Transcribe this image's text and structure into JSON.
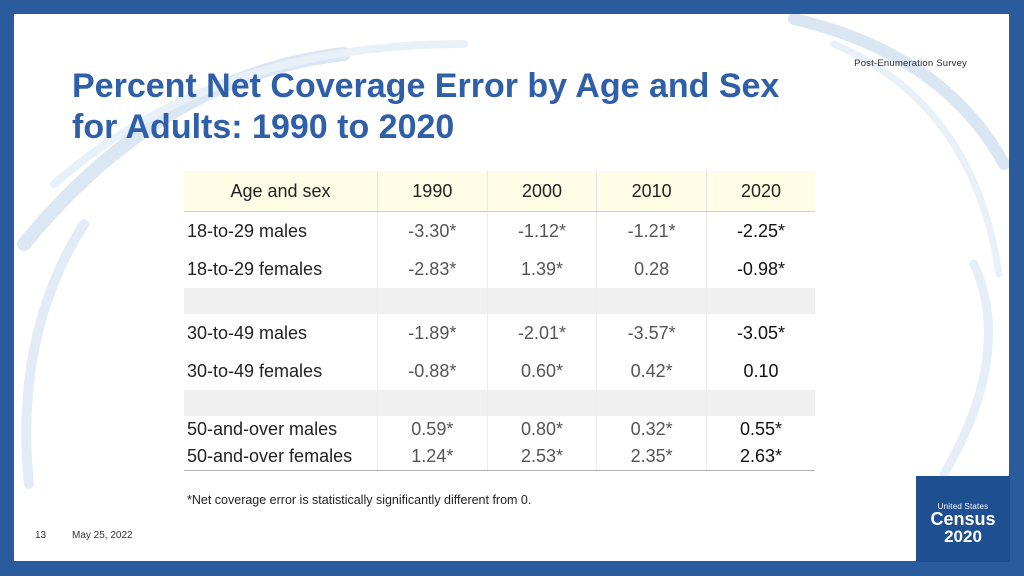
{
  "header": {
    "survey_label": "Post-Enumeration   Survey",
    "title": "Percent Net Coverage Error by Age and Sex for Adults: 1990 to 2020"
  },
  "table": {
    "headers": [
      "Age and sex",
      "1990",
      "2000",
      "2010",
      "2020"
    ],
    "rows": [
      {
        "label": "18-to-29 males",
        "values": [
          "-3.30*",
          "-1.12*",
          "-1.21*",
          "-2.25*"
        ]
      },
      {
        "label": "18-to-29 females",
        "values": [
          "-2.83*",
          "1.39*",
          "0.28",
          "-0.98*"
        ]
      },
      {
        "label": "30-to-49 males",
        "values": [
          "-1.89*",
          "-2.01*",
          "-3.57*",
          "-3.05*"
        ]
      },
      {
        "label": "30-to-49 females",
        "values": [
          "-0.88*",
          "0.60*",
          "0.42*",
          "0.10"
        ]
      },
      {
        "label": "50-and-over males",
        "values": [
          "0.59*",
          "0.80*",
          "0.32*",
          "0.55*"
        ]
      },
      {
        "label": "50-and-over females",
        "values": [
          "1.24*",
          "2.53*",
          "2.35*",
          "2.63*"
        ]
      }
    ]
  },
  "footnote": "*Net coverage error is statistically significantly different from 0.",
  "footer": {
    "page_number": "13",
    "date": "May 25, 2022"
  },
  "logo": {
    "line1": "United States",
    "line2": "Census",
    "line3": "2020"
  },
  "colors": {
    "frame": "#2a5b9c",
    "title": "#2f5fa8",
    "header_fill": "#fffde6",
    "logo_bg": "#1d4f91"
  }
}
